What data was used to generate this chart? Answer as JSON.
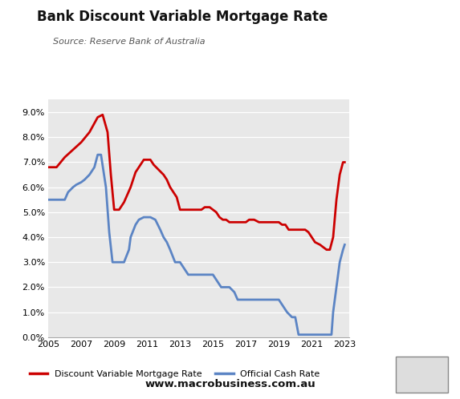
{
  "title": "Bank Discount Variable Mortgage Rate",
  "source": "Source: Reserve Bank of Australia",
  "website": "www.macrobusiness.com.au",
  "background_color": "#e8e8e8",
  "outer_background": "#ffffff",
  "red_line_color": "#cc0000",
  "blue_line_color": "#5b84c4",
  "legend_label_red": "Discount Variable Mortgage Rate",
  "legend_label_blue": "Official Cash Rate",
  "ylim": [
    0.0,
    0.095
  ],
  "yticks": [
    0.0,
    0.01,
    0.02,
    0.03,
    0.04,
    0.05,
    0.06,
    0.07,
    0.08,
    0.09
  ],
  "ytick_labels": [
    "0.0%",
    "1.0%",
    "2.0%",
    "3.0%",
    "4.0%",
    "5.0%",
    "6.0%",
    "7.0%",
    "8.0%",
    "9.0%"
  ],
  "xticks": [
    2005,
    2007,
    2009,
    2011,
    2013,
    2015,
    2017,
    2019,
    2021,
    2023
  ],
  "mortgage_rate": [
    [
      2005.0,
      0.068
    ],
    [
      2005.5,
      0.068
    ],
    [
      2006.0,
      0.072
    ],
    [
      2006.5,
      0.075
    ],
    [
      2007.0,
      0.078
    ],
    [
      2007.5,
      0.082
    ],
    [
      2008.0,
      0.088
    ],
    [
      2008.3,
      0.089
    ],
    [
      2008.6,
      0.082
    ],
    [
      2008.8,
      0.065
    ],
    [
      2009.0,
      0.051
    ],
    [
      2009.3,
      0.051
    ],
    [
      2009.6,
      0.054
    ],
    [
      2010.0,
      0.06
    ],
    [
      2010.3,
      0.066
    ],
    [
      2010.5,
      0.068
    ],
    [
      2010.8,
      0.071
    ],
    [
      2011.0,
      0.071
    ],
    [
      2011.2,
      0.071
    ],
    [
      2011.4,
      0.069
    ],
    [
      2011.7,
      0.067
    ],
    [
      2012.0,
      0.065
    ],
    [
      2012.2,
      0.063
    ],
    [
      2012.4,
      0.06
    ],
    [
      2012.6,
      0.058
    ],
    [
      2012.8,
      0.056
    ],
    [
      2013.0,
      0.051
    ],
    [
      2013.2,
      0.051
    ],
    [
      2013.5,
      0.051
    ],
    [
      2014.0,
      0.051
    ],
    [
      2014.3,
      0.051
    ],
    [
      2014.5,
      0.052
    ],
    [
      2014.8,
      0.052
    ],
    [
      2015.0,
      0.051
    ],
    [
      2015.2,
      0.05
    ],
    [
      2015.4,
      0.048
    ],
    [
      2015.6,
      0.047
    ],
    [
      2015.8,
      0.047
    ],
    [
      2016.0,
      0.046
    ],
    [
      2016.3,
      0.046
    ],
    [
      2016.6,
      0.046
    ],
    [
      2017.0,
      0.046
    ],
    [
      2017.2,
      0.047
    ],
    [
      2017.5,
      0.047
    ],
    [
      2017.8,
      0.046
    ],
    [
      2018.0,
      0.046
    ],
    [
      2018.3,
      0.046
    ],
    [
      2018.6,
      0.046
    ],
    [
      2018.8,
      0.046
    ],
    [
      2019.0,
      0.046
    ],
    [
      2019.2,
      0.045
    ],
    [
      2019.4,
      0.045
    ],
    [
      2019.6,
      0.043
    ],
    [
      2019.8,
      0.043
    ],
    [
      2020.0,
      0.043
    ],
    [
      2020.3,
      0.043
    ],
    [
      2020.6,
      0.043
    ],
    [
      2020.8,
      0.042
    ],
    [
      2021.0,
      0.04
    ],
    [
      2021.2,
      0.038
    ],
    [
      2021.5,
      0.037
    ],
    [
      2021.7,
      0.036
    ],
    [
      2021.9,
      0.035
    ],
    [
      2022.1,
      0.035
    ],
    [
      2022.3,
      0.04
    ],
    [
      2022.5,
      0.055
    ],
    [
      2022.7,
      0.065
    ],
    [
      2022.9,
      0.07
    ],
    [
      2023.0,
      0.07
    ]
  ],
  "cash_rate": [
    [
      2005.0,
      0.055
    ],
    [
      2005.3,
      0.055
    ],
    [
      2005.6,
      0.055
    ],
    [
      2005.9,
      0.055
    ],
    [
      2006.0,
      0.055
    ],
    [
      2006.2,
      0.058
    ],
    [
      2006.5,
      0.06
    ],
    [
      2006.7,
      0.061
    ],
    [
      2007.0,
      0.062
    ],
    [
      2007.2,
      0.063
    ],
    [
      2007.5,
      0.065
    ],
    [
      2007.8,
      0.068
    ],
    [
      2008.0,
      0.073
    ],
    [
      2008.2,
      0.073
    ],
    [
      2008.5,
      0.06
    ],
    [
      2008.7,
      0.042
    ],
    [
      2008.9,
      0.03
    ],
    [
      2009.0,
      0.03
    ],
    [
      2009.3,
      0.03
    ],
    [
      2009.6,
      0.03
    ],
    [
      2009.9,
      0.035
    ],
    [
      2010.0,
      0.04
    ],
    [
      2010.3,
      0.045
    ],
    [
      2010.5,
      0.047
    ],
    [
      2010.8,
      0.048
    ],
    [
      2011.0,
      0.048
    ],
    [
      2011.2,
      0.048
    ],
    [
      2011.5,
      0.047
    ],
    [
      2011.8,
      0.043
    ],
    [
      2012.0,
      0.04
    ],
    [
      2012.2,
      0.038
    ],
    [
      2012.4,
      0.035
    ],
    [
      2012.7,
      0.03
    ],
    [
      2012.9,
      0.03
    ],
    [
      2013.0,
      0.03
    ],
    [
      2013.2,
      0.028
    ],
    [
      2013.5,
      0.025
    ],
    [
      2013.8,
      0.025
    ],
    [
      2014.0,
      0.025
    ],
    [
      2014.5,
      0.025
    ],
    [
      2015.0,
      0.025
    ],
    [
      2015.2,
      0.023
    ],
    [
      2015.5,
      0.02
    ],
    [
      2015.8,
      0.02
    ],
    [
      2016.0,
      0.02
    ],
    [
      2016.3,
      0.018
    ],
    [
      2016.5,
      0.015
    ],
    [
      2016.8,
      0.015
    ],
    [
      2017.0,
      0.015
    ],
    [
      2017.5,
      0.015
    ],
    [
      2018.0,
      0.015
    ],
    [
      2018.5,
      0.015
    ],
    [
      2019.0,
      0.015
    ],
    [
      2019.2,
      0.013
    ],
    [
      2019.5,
      0.01
    ],
    [
      2019.8,
      0.008
    ],
    [
      2020.0,
      0.008
    ],
    [
      2020.2,
      0.001
    ],
    [
      2020.4,
      0.001
    ],
    [
      2020.6,
      0.001
    ],
    [
      2021.0,
      0.001
    ],
    [
      2021.3,
      0.001
    ],
    [
      2021.6,
      0.001
    ],
    [
      2021.9,
      0.001
    ],
    [
      2022.0,
      0.001
    ],
    [
      2022.2,
      0.001
    ],
    [
      2022.3,
      0.01
    ],
    [
      2022.5,
      0.02
    ],
    [
      2022.7,
      0.03
    ],
    [
      2022.9,
      0.035
    ],
    [
      2023.0,
      0.037
    ]
  ]
}
